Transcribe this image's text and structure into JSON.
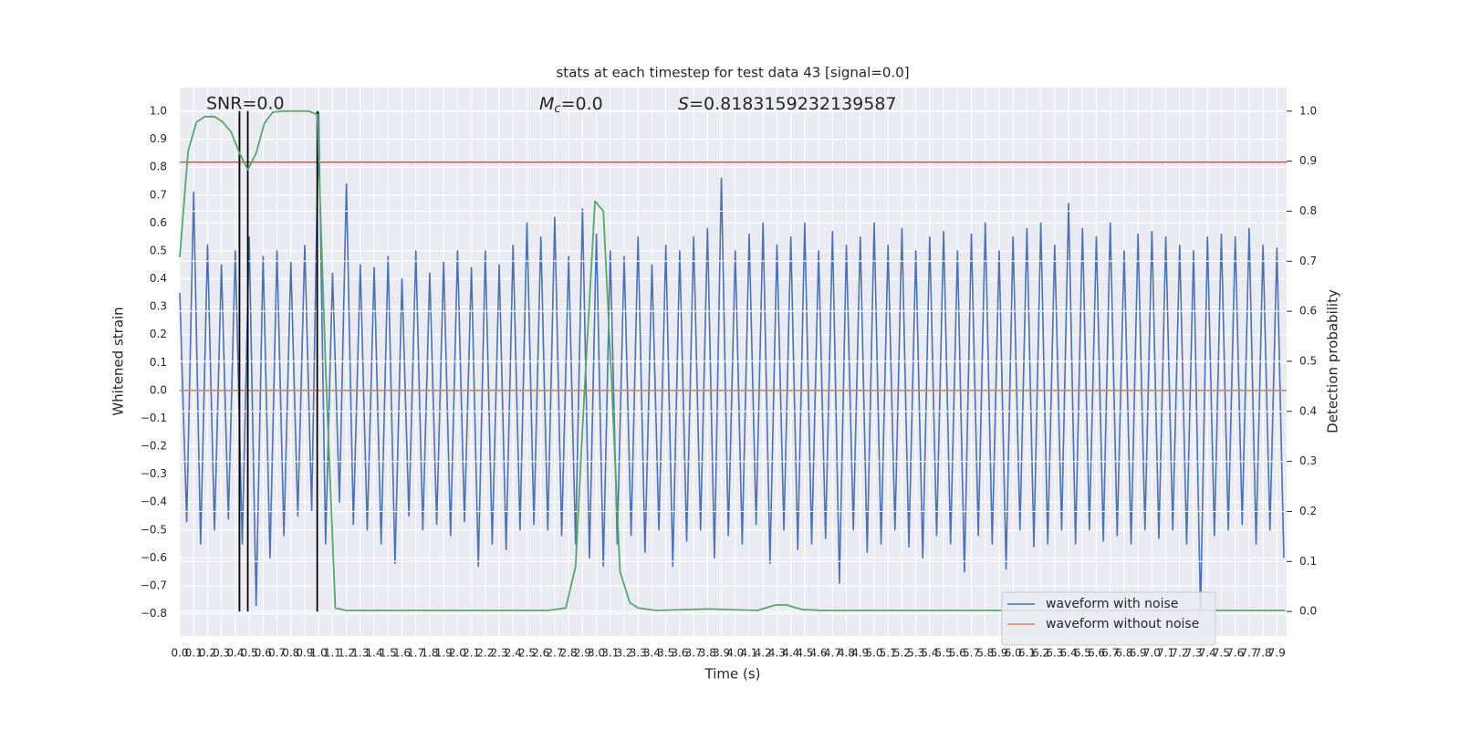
{
  "chart_data": {
    "type": "line",
    "title": "stats at each timestep for test data 43 [signal=0.0]",
    "x_label": "Time (s)",
    "y_label": "Whitened strain",
    "y2_label": "Detection probability",
    "annotations": [
      {
        "text": "SNR=0.0"
      },
      {
        "italic": "M",
        "sub": "c",
        "text": "=0.0"
      },
      {
        "italic": "S",
        "text": "=0.8183159232139587"
      }
    ],
    "xlim": [
      0,
      7.97
    ],
    "ylim": [
      -0.88,
      1.085
    ],
    "y2lim": [
      -0.049,
      1.047
    ],
    "grid": true,
    "legend": "lower right",
    "xticks": [
      {
        "value": 0,
        "label": "0.0"
      },
      0.1,
      0.2,
      0.3,
      0.4,
      0.5,
      0.6,
      0.7,
      0.8,
      0.9,
      {
        "value": 1,
        "label": "1.0"
      },
      1.1,
      1.2,
      1.3,
      1.4,
      1.5,
      1.6,
      1.7,
      1.8,
      1.9,
      {
        "value": 2,
        "label": "2.0"
      },
      2.1,
      2.2,
      2.3,
      2.4,
      2.5,
      2.6,
      2.7,
      2.8,
      2.9,
      {
        "value": 3,
        "label": "3.0"
      },
      3.1,
      3.2,
      3.3,
      3.4,
      3.5,
      3.6,
      3.7,
      3.8,
      3.9,
      {
        "value": 4,
        "label": "4.0"
      },
      4.1,
      4.2,
      4.3,
      4.4,
      4.5,
      4.6,
      4.7,
      4.8,
      4.9,
      {
        "value": 5,
        "label": "5.0"
      },
      5.1,
      5.2,
      5.3,
      5.4,
      5.5,
      5.6,
      5.7,
      5.8,
      5.9,
      {
        "value": 6,
        "label": "6.0"
      },
      6.1,
      6.2,
      6.3,
      6.4,
      6.5,
      6.6,
      6.7,
      6.8,
      6.9,
      {
        "value": 7,
        "label": "7.0"
      },
      7.1,
      7.2,
      7.3,
      7.4,
      7.5,
      7.6,
      7.7,
      7.8,
      7.9
    ],
    "yticks": [
      {
        "value": -0.8,
        "label": "−0.8"
      },
      {
        "value": -0.7,
        "label": "−0.7"
      },
      {
        "value": -0.6,
        "label": "−0.6"
      },
      {
        "value": -0.5,
        "label": "−0.5"
      },
      {
        "value": -0.4,
        "label": "−0.4"
      },
      {
        "value": -0.3,
        "label": "−0.3"
      },
      {
        "value": -0.2,
        "label": "−0.2"
      },
      {
        "value": -0.1,
        "label": "−0.1"
      },
      {
        "value": 0,
        "label": "0.0"
      },
      0.1,
      0.2,
      0.3,
      0.4,
      0.5,
      0.6,
      0.7,
      0.8,
      0.9,
      {
        "value": 1,
        "label": "1.0"
      }
    ],
    "y2ticks": [
      {
        "value": 0,
        "label": "0.0"
      },
      0.1,
      0.2,
      0.3,
      0.4,
      0.5,
      0.6,
      0.7,
      0.8,
      0.9,
      {
        "value": 1,
        "label": "1.0"
      }
    ],
    "series": [
      {
        "name": "waveform with noise",
        "color": "#4c72b0",
        "x": [
          0,
          0.05,
          0.1,
          0.15,
          0.2,
          0.25,
          0.3,
          0.35,
          0.4,
          0.45,
          0.5,
          0.55,
          0.6,
          0.65,
          0.7,
          0.75,
          0.8,
          0.85,
          0.9,
          0.95,
          1,
          1.05,
          1.1,
          1.15,
          1.2,
          1.25,
          1.3,
          1.35,
          1.4,
          1.45,
          1.5,
          1.55,
          1.6,
          1.65,
          1.7,
          1.75,
          1.8,
          1.85,
          1.9,
          1.95,
          2,
          2.05,
          2.1,
          2.15,
          2.2,
          2.25,
          2.3,
          2.35,
          2.4,
          2.45,
          2.5,
          2.55,
          2.6,
          2.65,
          2.7,
          2.75,
          2.8,
          2.85,
          2.9,
          2.95,
          3,
          3.05,
          3.1,
          3.15,
          3.2,
          3.25,
          3.3,
          3.35,
          3.4,
          3.45,
          3.5,
          3.55,
          3.6,
          3.65,
          3.7,
          3.75,
          3.8,
          3.85,
          3.9,
          3.95,
          4,
          4.05,
          4.1,
          4.15,
          4.2,
          4.25,
          4.3,
          4.35,
          4.4,
          4.45,
          4.5,
          4.55,
          4.6,
          4.65,
          4.7,
          4.75,
          4.8,
          4.85,
          4.9,
          4.95,
          5,
          5.05,
          5.1,
          5.15,
          5.2,
          5.25,
          5.3,
          5.35,
          5.4,
          5.45,
          5.5,
          5.55,
          5.6,
          5.65,
          5.7,
          5.75,
          5.8,
          5.85,
          5.9,
          5.95,
          6,
          6.05,
          6.1,
          6.15,
          6.2,
          6.25,
          6.3,
          6.35,
          6.4,
          6.45,
          6.5,
          6.55,
          6.6,
          6.65,
          6.7,
          6.75,
          6.8,
          6.85,
          6.9,
          6.95,
          7,
          7.05,
          7.1,
          7.15,
          7.2,
          7.25,
          7.3,
          7.35,
          7.4,
          7.45,
          7.5,
          7.55,
          7.6,
          7.65,
          7.7,
          7.75,
          7.8,
          7.85,
          7.9,
          7.95
        ],
        "values": [
          0.35,
          -0.47,
          0.71,
          -0.55,
          0.52,
          -0.5,
          0.45,
          -0.46,
          0.5,
          -0.55,
          0.55,
          -0.77,
          0.48,
          -0.6,
          0.5,
          -0.52,
          0.46,
          -0.45,
          0.52,
          -0.43,
          1.0,
          -0.55,
          0.42,
          -0.4,
          0.74,
          -0.48,
          0.45,
          -0.5,
          0.44,
          -0.55,
          0.48,
          -0.62,
          0.4,
          -0.45,
          0.5,
          -0.5,
          0.42,
          -0.48,
          0.46,
          -0.52,
          0.5,
          -0.47,
          0.44,
          -0.63,
          0.5,
          -0.55,
          0.45,
          -0.57,
          0.52,
          -0.5,
          0.6,
          -0.48,
          0.55,
          -0.5,
          0.62,
          -0.52,
          0.48,
          -0.55,
          0.65,
          -0.6,
          0.56,
          -0.63,
          0.5,
          -0.55,
          0.48,
          -0.52,
          0.55,
          -0.58,
          0.45,
          -0.5,
          0.52,
          -0.63,
          0.5,
          -0.54,
          0.55,
          -0.5,
          0.58,
          -0.6,
          0.76,
          -0.52,
          0.5,
          -0.55,
          0.56,
          -0.48,
          0.6,
          -0.62,
          0.52,
          -0.5,
          0.55,
          -0.57,
          0.6,
          -0.55,
          0.5,
          -0.53,
          0.57,
          -0.69,
          0.52,
          -0.5,
          0.55,
          -0.58,
          0.6,
          -0.55,
          0.52,
          -0.5,
          0.58,
          -0.56,
          0.5,
          -0.6,
          0.55,
          -0.52,
          0.57,
          -0.55,
          0.5,
          -0.65,
          0.56,
          -0.52,
          0.6,
          -0.55,
          0.5,
          -0.64,
          0.55,
          -0.5,
          0.58,
          -0.56,
          0.6,
          -0.55,
          0.52,
          -0.5,
          0.67,
          -0.55,
          0.58,
          -0.5,
          0.55,
          -0.54,
          0.6,
          -0.52,
          0.5,
          -0.55,
          0.56,
          -0.5,
          0.57,
          -0.53,
          0.55,
          -0.5,
          0.52,
          -0.55,
          0.5,
          -0.8,
          0.55,
          -0.52,
          0.56,
          -0.5,
          0.55,
          -0.48,
          0.58,
          -0.55,
          0.52,
          -0.5,
          0.51,
          -0.6
        ]
      },
      {
        "name": "waveform without noise",
        "color": "#dd8452",
        "x": [
          0,
          7.97
        ],
        "values": [
          0,
          0
        ]
      },
      {
        "color": "#55a868",
        "axis": "y2",
        "x": [
          0,
          0.06,
          0.12,
          0.18,
          0.25,
          0.31,
          0.37,
          0.43,
          0.49,
          0.55,
          0.61,
          0.67,
          0.74,
          0.93,
          0.99,
          1.05,
          1.12,
          1.2,
          2.12,
          2.65,
          2.78,
          2.85,
          2.91,
          2.99,
          3.05,
          3.11,
          3.17,
          3.24,
          3.3,
          3.43,
          3.8,
          4.16,
          4.29,
          4.37,
          4.48,
          4.62,
          7.96
        ],
        "values": [
          0.708,
          0.92,
          0.978,
          0.989,
          0.989,
          0.978,
          0.958,
          0.916,
          0.883,
          0.916,
          0.976,
          0.998,
          1.0,
          1.0,
          0.993,
          0.49,
          0.007,
          0.002,
          0.002,
          0.002,
          0.007,
          0.09,
          0.42,
          0.82,
          0.8,
          0.456,
          0.08,
          0.018,
          0.007,
          0.002,
          0.005,
          0.002,
          0.013,
          0.013,
          0.004,
          0.002,
          0.002
        ]
      }
    ],
    "threshold": {
      "value": 0.8183159232139587,
      "color": "#c44e52"
    },
    "vlines": {
      "x": [
        0.43,
        0.49,
        0.99
      ],
      "span": [
        0,
        1
      ],
      "axis": "y2",
      "color": "#000000"
    }
  }
}
